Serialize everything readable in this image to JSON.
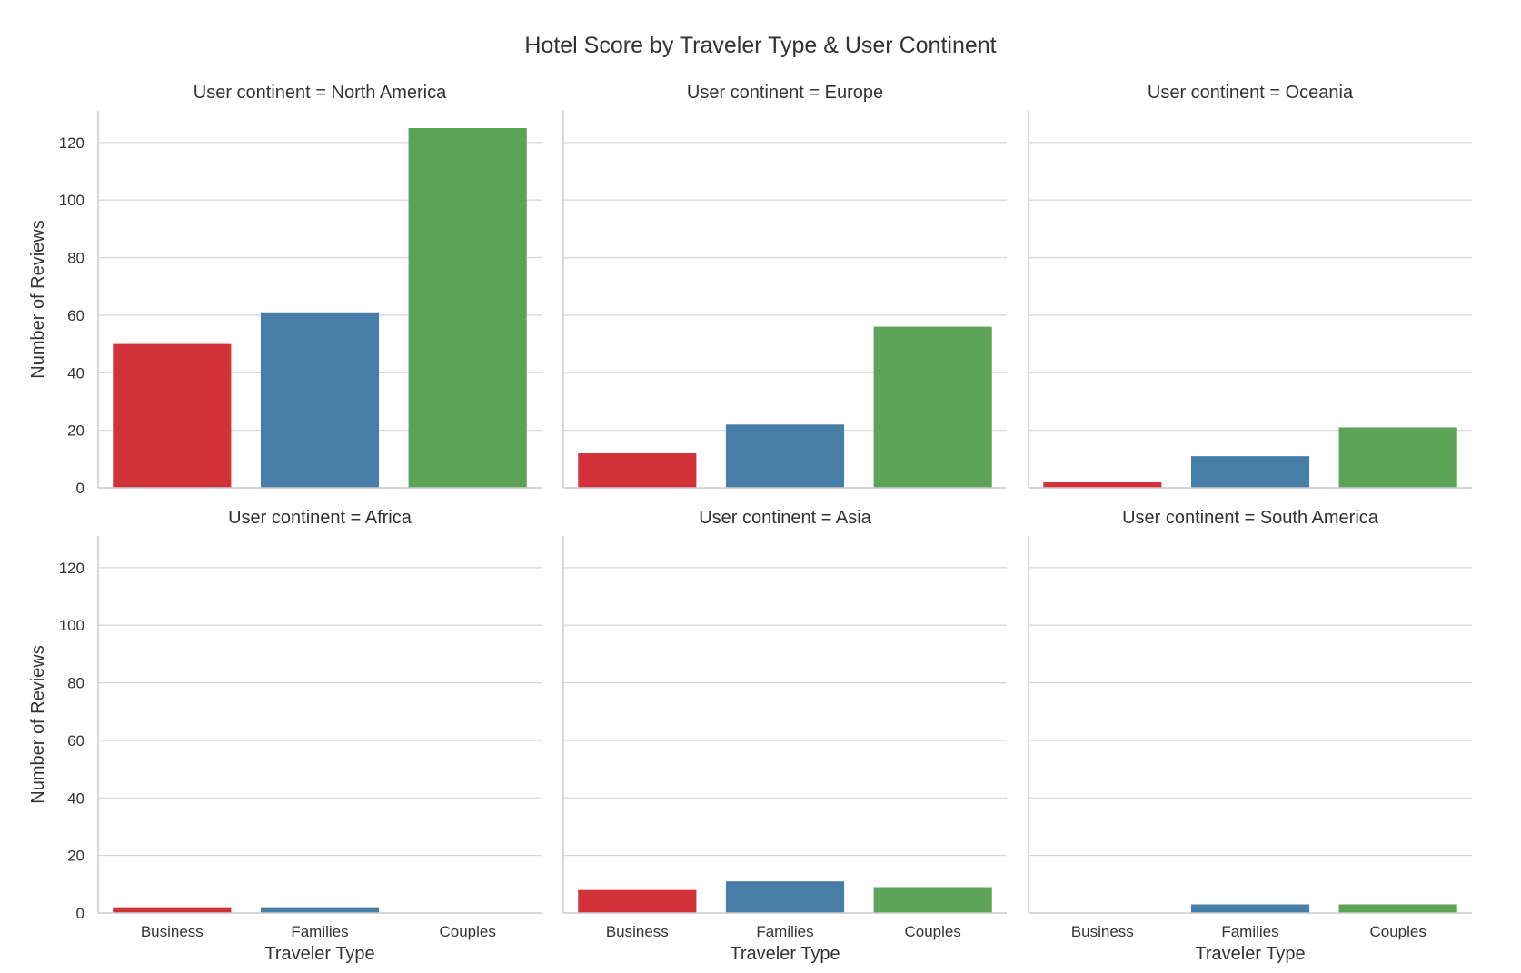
{
  "chart_data": {
    "type": "bar",
    "title": "Hotel Score by Traveler Type & User Continent",
    "xlabel": "Traveler Type",
    "ylabel": "Number of Reviews",
    "ylim": [
      0,
      131
    ],
    "yticks": [
      0,
      20,
      40,
      60,
      80,
      100,
      120
    ],
    "categories": [
      "Business",
      "Families",
      "Couples"
    ],
    "colors": {
      "Business": "#d1323a",
      "Families": "#467ea8",
      "Couples": "#5ba457"
    },
    "grid": true,
    "layout": "2 rows x 3 columns, shared y axis",
    "facets": [
      {
        "title": "User continent = North America",
        "values": [
          50,
          61,
          125
        ]
      },
      {
        "title": "User continent = Europe",
        "values": [
          12,
          22,
          56
        ]
      },
      {
        "title": "User continent = Oceania",
        "values": [
          2,
          11,
          21
        ]
      },
      {
        "title": "User continent = Africa",
        "values": [
          2,
          2,
          0
        ]
      },
      {
        "title": "User continent = Asia",
        "values": [
          8,
          11,
          9
        ]
      },
      {
        "title": "User continent = South America",
        "values": [
          0,
          3,
          3
        ]
      }
    ]
  }
}
